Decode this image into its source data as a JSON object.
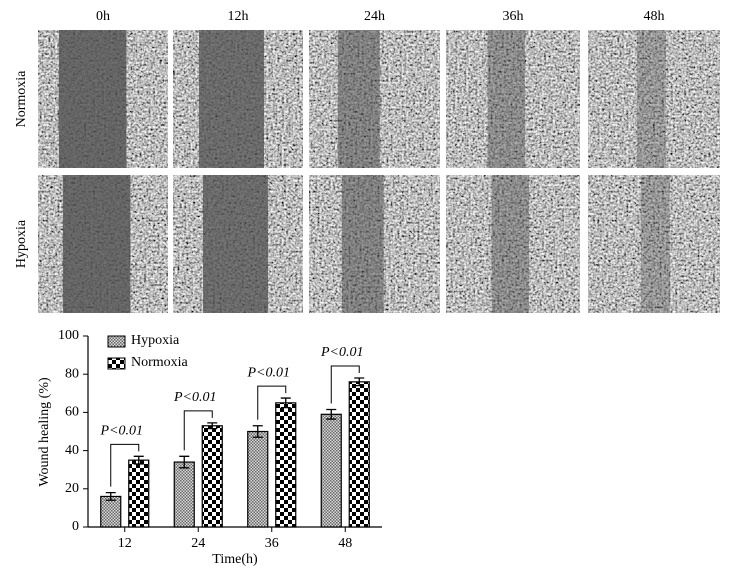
{
  "panel": {
    "columns": [
      "0h",
      "12h",
      "24h",
      "36h",
      "48h"
    ],
    "rows": [
      "Normoxia",
      "Hypoxia"
    ]
  },
  "chart_data": {
    "type": "bar",
    "xlabel": "Time(h)",
    "ylabel": "Wound healing (%)",
    "categories": [
      "12",
      "24",
      "36",
      "48"
    ],
    "series": [
      {
        "name": "Hypoxia",
        "color": "#6a6a6a",
        "values": [
          16,
          34,
          50,
          59
        ],
        "errors": [
          2,
          3,
          3,
          2.5
        ]
      },
      {
        "name": "Normoxia",
        "color": "#000000",
        "values": [
          35,
          53,
          65,
          76
        ],
        "errors": [
          2,
          1.5,
          2.5,
          2
        ]
      }
    ],
    "annotations": [
      "P<0.01",
      "P<0.01",
      "P<0.01",
      "P<0.01"
    ],
    "ylim": [
      0,
      100
    ],
    "yticks": [
      0,
      20,
      40,
      60,
      80,
      100
    ],
    "grid": false,
    "legend": "top-left"
  }
}
